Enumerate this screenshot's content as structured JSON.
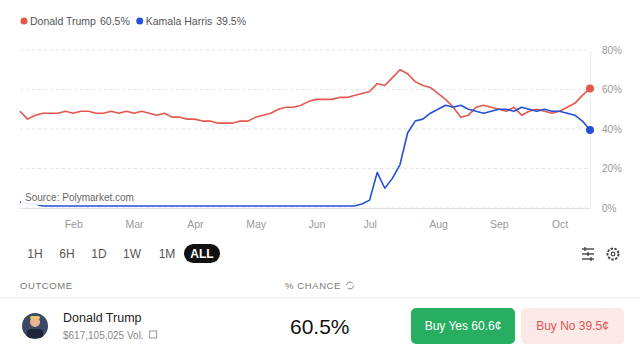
{
  "chart_data": {
    "type": "line",
    "legend_values": [
      "60.5%",
      "39.5%"
    ],
    "annotation": "Source: Polymarket.com",
    "categories": [
      null,
      null,
      null,
      null,
      null,
      null,
      null,
      "Feb",
      null,
      null,
      null,
      null,
      null,
      null,
      null,
      "Mar",
      null,
      null,
      null,
      null,
      null,
      null,
      null,
      "Apr",
      null,
      null,
      null,
      null,
      null,
      null,
      null,
      "May",
      null,
      null,
      null,
      null,
      null,
      null,
      null,
      "Jun",
      null,
      null,
      null,
      null,
      null,
      null,
      "Jul",
      null,
      null,
      null,
      null,
      null,
      null,
      null,
      null,
      "Aug",
      null,
      null,
      null,
      null,
      null,
      null,
      null,
      "Sep",
      null,
      null,
      null,
      null,
      null,
      null,
      null,
      "Oct",
      null,
      null,
      null,
      null
    ],
    "series": [
      {
        "name": "Donald Trump",
        "color": "#e4574c",
        "values": [
          49,
          45,
          47,
          48,
          48,
          48,
          49,
          48,
          49,
          49,
          48,
          48,
          49,
          48,
          49,
          48,
          49,
          48,
          47,
          48,
          46,
          46,
          45,
          45,
          44,
          44,
          43,
          43,
          43,
          44,
          44,
          46,
          47,
          48,
          50,
          51,
          51,
          52,
          54,
          55,
          55,
          55,
          56,
          56,
          57,
          58,
          59,
          63,
          62,
          66,
          70,
          68,
          64,
          62,
          61,
          58,
          55,
          51,
          46,
          47,
          51,
          52,
          51,
          50,
          49,
          51,
          47,
          49,
          50,
          49,
          48,
          49,
          51,
          53,
          57,
          60.5
        ]
      },
      {
        "name": "Kamala Harris",
        "color": "#2450d4",
        "values": [
          3,
          2,
          2,
          1,
          1,
          1,
          1,
          1,
          1,
          1,
          1,
          1,
          1,
          1,
          1,
          1,
          1,
          1,
          1,
          1,
          1,
          1,
          1,
          1,
          1,
          1,
          1,
          1,
          1,
          1,
          1,
          1,
          1,
          1,
          1,
          1,
          1,
          1,
          1,
          1,
          1,
          1,
          1,
          1,
          1,
          2,
          4,
          18,
          10,
          15,
          22,
          38,
          44,
          45,
          48,
          50,
          52,
          51,
          52,
          50,
          49,
          48,
          49,
          50,
          50,
          49,
          51,
          50,
          49,
          50,
          49,
          49,
          48,
          47,
          44,
          39.5
        ]
      }
    ],
    "ylim": [
      0,
      80
    ],
    "yticks": [
      {
        "value": 0,
        "label": "0%"
      },
      {
        "value": 20,
        "label": "20%"
      },
      {
        "value": 40,
        "label": "40%"
      },
      {
        "value": 60,
        "label": "60%"
      },
      {
        "value": 80,
        "label": "80%"
      }
    ],
    "grid": true,
    "legend": "top"
  },
  "page": {
    "time_ranges": [
      "1H",
      "6H",
      "1D",
      "1W",
      "1M",
      "ALL"
    ],
    "selected_range": "ALL",
    "table": {
      "headers": [
        "OUTCOME",
        "% CHANCE"
      ],
      "rows": [
        {
          "name": "Donald Trump",
          "volume": "$617,105,025 Vol.",
          "chance": "60.5%",
          "buy_yes": "Buy Yes 60.6¢",
          "buy_no": "Buy No 39.5¢"
        }
      ]
    }
  }
}
